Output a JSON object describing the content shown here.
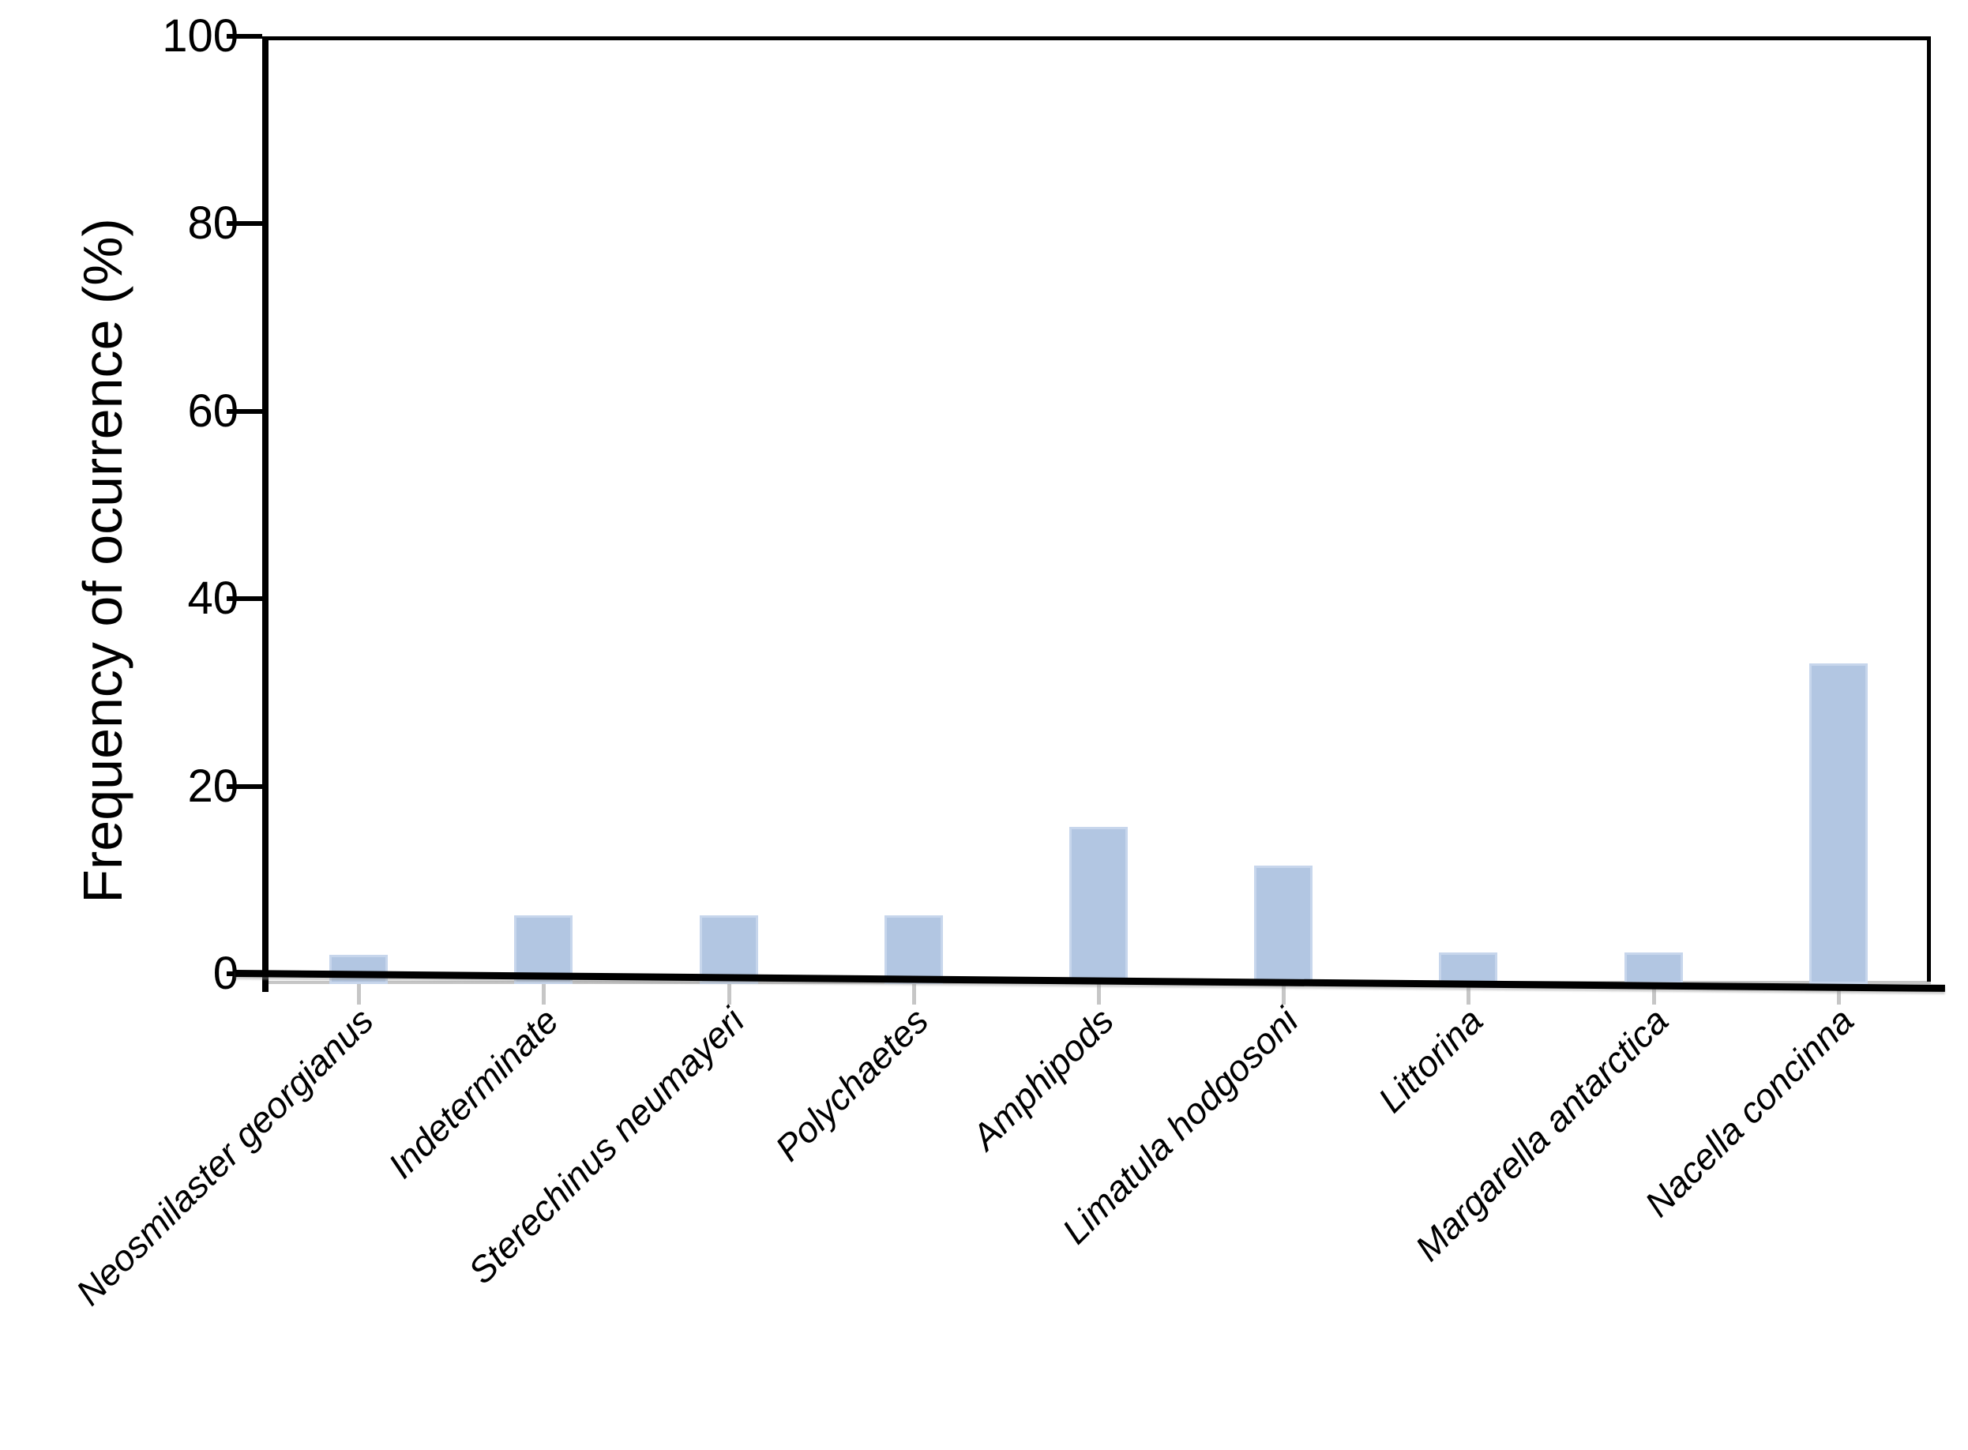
{
  "figure": {
    "background": "#ffffff",
    "axis_color": "#000000",
    "minor_axis_color": "#c6c6c6"
  },
  "chart_data": {
    "type": "bar",
    "title": "",
    "xlabel": "",
    "ylabel": "Frequency of ocurrence (%)",
    "ylim": [
      0,
      100
    ],
    "yticks": [
      0,
      20,
      40,
      60,
      80,
      100
    ],
    "grid": false,
    "legend": null,
    "bar_color": "#b2c6e2",
    "bar_edge_color": "#c7d6ec",
    "categories": [
      "Neosmilaster georgianus",
      "Indeterminate",
      "Sterechinus neumayeri",
      "Polychaetes",
      "Amphipods",
      "Limatula hodgosoni",
      "Littorina",
      "Margarella antarctica",
      "Nacella concinna"
    ],
    "values": [
      3.1,
      7.3,
      7.3,
      7.3,
      16.8,
      12.6,
      3.4,
      3.4,
      34.2
    ],
    "categories_style": "italic",
    "category_label_rotation_deg": 45
  }
}
